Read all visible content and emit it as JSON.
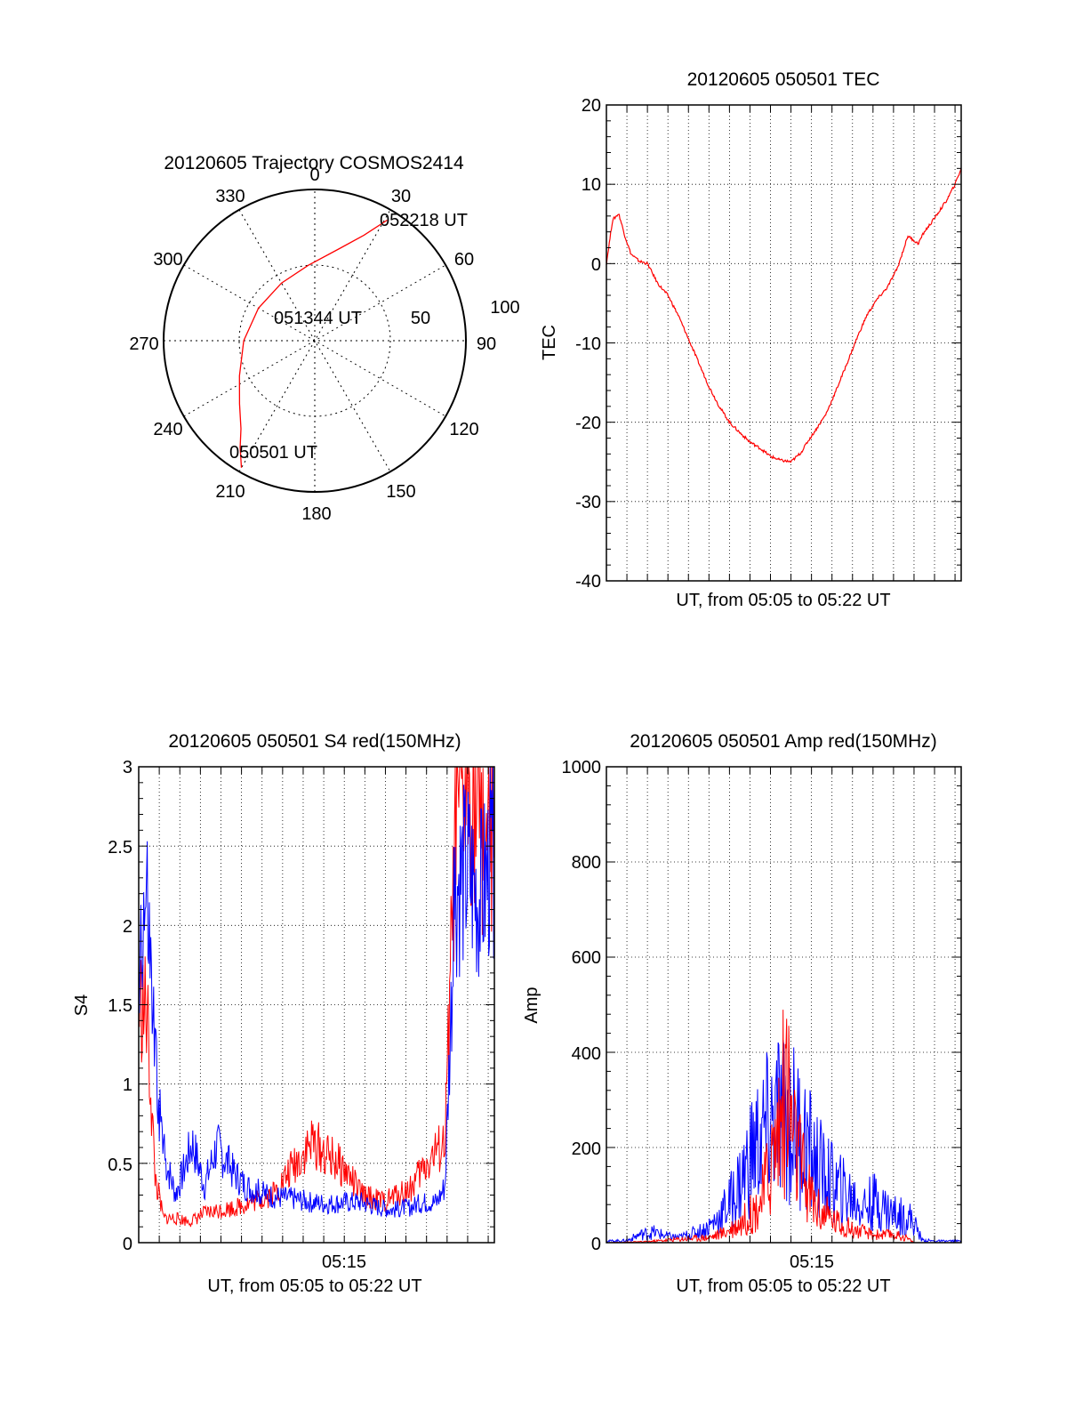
{
  "figure": {
    "charts": [
      {
        "type": "polar",
        "title": "20120605 Trajectory COSMOS2414",
        "azimuth_labels": [
          "0",
          "30",
          "60",
          "90",
          "120",
          "150",
          "180",
          "210",
          "240",
          "270",
          "300",
          "330"
        ],
        "radial_labels": [
          "50",
          "100"
        ],
        "rlim": [
          0,
          100
        ],
        "start_label": "050501 UT",
        "mid_label": "051344 UT",
        "end_label": "052218 UT",
        "series": [
          {
            "color": "#ff0000",
            "points": [
              {
                "az": 210,
                "r": 97
              },
              {
                "az": 215,
                "r": 86
              },
              {
                "az": 220,
                "r": 76
              },
              {
                "az": 230,
                "r": 65
              },
              {
                "az": 245,
                "r": 55
              },
              {
                "az": 270,
                "r": 47
              },
              {
                "az": 300,
                "r": 43
              },
              {
                "az": 330,
                "r": 44
              },
              {
                "az": 355,
                "r": 50
              },
              {
                "az": 15,
                "r": 63
              },
              {
                "az": 25,
                "r": 77
              },
              {
                "az": 31,
                "r": 93
              }
            ]
          }
        ]
      },
      {
        "type": "line",
        "title": "20120605 050501 TEC",
        "xlabel": "UT, from 05:05 to 05:22 UT",
        "ylabel": "TEC",
        "xlim": [
          0,
          17.3
        ],
        "ylim": [
          -40,
          20
        ],
        "yticks": [
          "-40",
          "-30",
          "-20",
          "-10",
          "0",
          "10",
          "20"
        ],
        "series": [
          {
            "color": "#ff0000",
            "x": [
              0,
              0.3,
              0.6,
              0.9,
              1.2,
              1.6,
              2.0,
              2.5,
              3.0,
              3.5,
              4.0,
              4.5,
              5.0,
              5.5,
              6.0,
              6.5,
              7.0,
              7.5,
              8.0,
              8.5,
              9.0,
              9.5,
              9.8,
              10.2,
              10.7,
              11.2,
              11.7,
              12.2,
              12.7,
              13.2,
              13.7,
              14.2,
              14.7,
              15.2,
              15.5,
              15.8,
              16.2,
              16.6,
              17.0,
              17.3
            ],
            "y": [
              0,
              5.5,
              6.3,
              3.5,
              1.2,
              0.3,
              0,
              -2.5,
              -4.0,
              -6.5,
              -9.5,
              -12.5,
              -15.5,
              -18.0,
              -20.0,
              -21.3,
              -22.5,
              -23.3,
              -24.3,
              -24.8,
              -25.0,
              -23.8,
              -22.5,
              -21.0,
              -19.0,
              -16.0,
              -12.8,
              -9.5,
              -6.5,
              -4.5,
              -3.0,
              -0.5,
              3.5,
              2.5,
              4.0,
              5.0,
              6.5,
              8.0,
              10.0,
              12.0
            ]
          }
        ]
      },
      {
        "type": "line",
        "title": "20120605 050501 S4 red(150MHz)",
        "xlabel": "UT, from 05:05 to 05:22 UT",
        "ylabel": "S4",
        "xlim": [
          0,
          17.3
        ],
        "ylim": [
          0,
          3
        ],
        "xticks": [
          {
            "x": 10.0,
            "label": "05:15"
          }
        ],
        "yticks": [
          "0",
          "0.5",
          "1",
          "1.5",
          "2",
          "2.5",
          "3"
        ],
        "series": [
          {
            "color": "#ff0000",
            "x": [
              0,
              0.4,
              0.8,
              1.2,
              1.8,
              2.5,
              3.2,
              4.0,
              4.8,
              5.5,
              6.2,
              6.8,
              7.4,
              8.0,
              8.5,
              9.0,
              9.6,
              10.2,
              10.8,
              11.4,
              12.0,
              12.6,
              13.2,
              13.8,
              14.4,
              14.9,
              15.4,
              16.0,
              16.6,
              17.3
            ],
            "y": [
              1.5,
              1.4,
              0.4,
              0.15,
              0.15,
              0.13,
              0.18,
              0.2,
              0.22,
              0.25,
              0.28,
              0.33,
              0.45,
              0.55,
              0.62,
              0.55,
              0.5,
              0.42,
              0.3,
              0.27,
              0.25,
              0.3,
              0.33,
              0.45,
              0.55,
              0.6,
              2.5,
              2.9,
              2.6,
              2.4
            ]
          },
          {
            "color": "#0000ff",
            "x": [
              0,
              0.4,
              0.8,
              1.2,
              1.8,
              2.2,
              2.6,
              3.2,
              3.8,
              4.5,
              5.2,
              6.0,
              6.8,
              7.6,
              8.4,
              9.2,
              10.0,
              10.8,
              11.6,
              12.4,
              13.2,
              14.0,
              14.5,
              14.9,
              15.4,
              16.0,
              16.6,
              17.3
            ],
            "y": [
              1.8,
              2.0,
              1.1,
              0.55,
              0.3,
              0.45,
              0.62,
              0.35,
              0.6,
              0.45,
              0.35,
              0.3,
              0.28,
              0.27,
              0.25,
              0.24,
              0.25,
              0.25,
              0.22,
              0.2,
              0.22,
              0.25,
              0.25,
              0.35,
              2.2,
              2.3,
              2.1,
              2.4
            ]
          }
        ]
      },
      {
        "type": "line",
        "title": "20120605 050501 Amp red(150MHz)",
        "xlabel": "UT, from 05:05 to 05:22 UT",
        "ylabel": "Amp",
        "xlim": [
          0,
          17.3
        ],
        "ylim": [
          0,
          1000
        ],
        "xticks": [
          {
            "x": 10.0,
            "label": "05:15"
          }
        ],
        "yticks": [
          "0",
          "200",
          "400",
          "600",
          "800",
          "1000"
        ],
        "series": [
          {
            "color": "#0000ff",
            "x": [
              0,
              1.0,
              1.6,
              2.3,
              3.0,
              3.6,
              4.2,
              4.8,
              5.4,
              6.0,
              6.6,
              7.2,
              7.8,
              8.4,
              9.0,
              9.6,
              10.2,
              10.8,
              11.4,
              12.0,
              12.6,
              13.2,
              13.8,
              14.4,
              14.9,
              15.4,
              16.0,
              17.3
            ],
            "y": [
              3,
              4,
              15,
              20,
              12,
              10,
              18,
              25,
              45,
              75,
              120,
              180,
              210,
              240,
              230,
              200,
              150,
              120,
              100,
              85,
              70,
              80,
              60,
              50,
              45,
              5,
              3,
              3
            ]
          },
          {
            "color": "#ff0000",
            "x": [
              0,
              2.0,
              3.0,
              4.0,
              5.0,
              5.8,
              6.6,
              7.2,
              7.6,
              8.0,
              8.4,
              8.8,
              9.2,
              9.8,
              10.4,
              11.2,
              12.0,
              13.0,
              14.0,
              14.6,
              15.0,
              17.3
            ],
            "y": [
              0,
              2,
              5,
              8,
              10,
              20,
              40,
              60,
              85,
              150,
              220,
              300,
              180,
              100,
              60,
              40,
              25,
              15,
              15,
              10,
              0,
              0
            ]
          }
        ]
      }
    ]
  }
}
